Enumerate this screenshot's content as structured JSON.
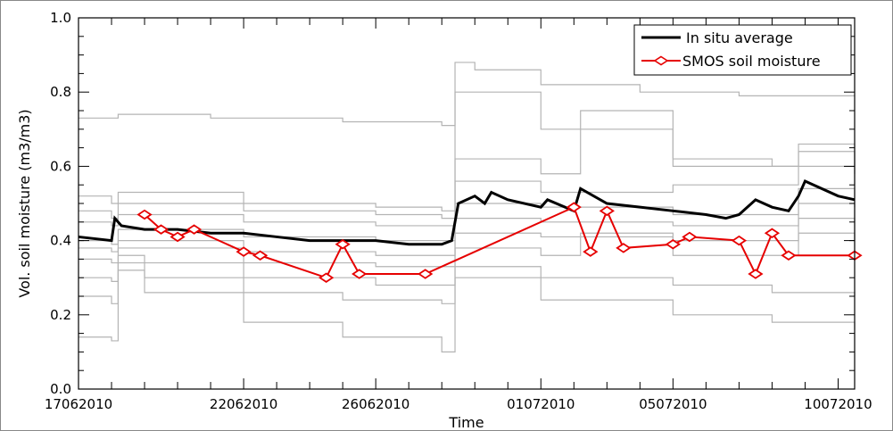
{
  "chart_data": {
    "type": "line",
    "xlabel": "Time",
    "ylabel": "Vol. soil moisture (m3/m3)",
    "x_range": [
      0,
      23.5
    ],
    "ylim": [
      0.0,
      1.0
    ],
    "x_ticks": [
      {
        "x": 0,
        "label": "17062010"
      },
      {
        "x": 5,
        "label": "22062010"
      },
      {
        "x": 9,
        "label": "26062010"
      },
      {
        "x": 14,
        "label": "01072010"
      },
      {
        "x": 18,
        "label": "05072010"
      },
      {
        "x": 23,
        "label": "10072010"
      }
    ],
    "y_ticks": [
      {
        "y": 0.0,
        "label": "0.0"
      },
      {
        "y": 0.2,
        "label": "0.2"
      },
      {
        "y": 0.4,
        "label": "0.4"
      },
      {
        "y": 0.6,
        "label": "0.6"
      },
      {
        "y": 0.8,
        "label": "0.8"
      },
      {
        "y": 1.0,
        "label": "1.0"
      }
    ],
    "legend_position": "top-right",
    "colors": {
      "in_situ": "#000000",
      "smos": "#e60000",
      "stations": "#b4b4b4",
      "frame": "#000000"
    },
    "series": [
      {
        "name": "In situ average",
        "x": [
          0,
          1,
          1.1,
          1.3,
          2,
          3,
          4,
          5,
          6,
          7,
          8,
          9,
          10,
          11,
          11.3,
          11.5,
          12,
          12.3,
          12.5,
          13,
          14,
          14.2,
          15,
          15.2,
          16,
          17,
          18,
          19,
          19.6,
          20,
          20.5,
          21,
          21.5,
          21.8,
          22,
          23,
          23.5
        ],
        "y": [
          0.41,
          0.4,
          0.46,
          0.44,
          0.43,
          0.43,
          0.42,
          0.42,
          0.41,
          0.4,
          0.4,
          0.4,
          0.39,
          0.39,
          0.4,
          0.5,
          0.52,
          0.5,
          0.53,
          0.51,
          0.49,
          0.51,
          0.48,
          0.54,
          0.5,
          0.49,
          0.48,
          0.47,
          0.46,
          0.47,
          0.51,
          0.49,
          0.48,
          0.52,
          0.56,
          0.52,
          0.51
        ]
      },
      {
        "name": "SMOS soil moisture",
        "x": [
          2.0,
          2.5,
          3.0,
          3.5,
          5.0,
          5.5,
          7.5,
          8.0,
          8.5,
          10.5,
          15.0,
          15.5,
          16.0,
          16.5,
          18.0,
          18.5,
          20.0,
          20.5,
          21.0,
          21.5,
          23.5
        ],
        "y": [
          0.47,
          0.43,
          0.41,
          0.43,
          0.37,
          0.36,
          0.3,
          0.39,
          0.31,
          0.31,
          0.49,
          0.37,
          0.48,
          0.38,
          0.39,
          0.41,
          0.4,
          0.31,
          0.42,
          0.36,
          0.36
        ]
      }
    ],
    "background_series": [
      {
        "x": [
          0,
          1,
          1.2,
          4,
          8,
          11,
          11.4,
          12,
          14,
          17,
          20,
          23.5
        ],
        "y": [
          0.73,
          0.73,
          0.74,
          0.73,
          0.72,
          0.71,
          0.88,
          0.86,
          0.82,
          0.8,
          0.79,
          0.79
        ]
      },
      {
        "x": [
          0,
          1,
          1.2,
          5,
          9,
          11,
          11.4,
          14,
          18,
          21,
          21.8,
          23.5
        ],
        "y": [
          0.52,
          0.5,
          0.53,
          0.5,
          0.49,
          0.48,
          0.8,
          0.7,
          0.62,
          0.6,
          0.66,
          0.6
        ]
      },
      {
        "x": [
          0,
          1,
          1.2,
          5,
          9,
          11,
          11.4,
          14,
          15.2,
          18,
          21.8,
          23.5
        ],
        "y": [
          0.48,
          0.46,
          0.5,
          0.48,
          0.47,
          0.46,
          0.62,
          0.58,
          0.75,
          0.6,
          0.64,
          0.58
        ]
      },
      {
        "x": [
          0,
          1,
          1.2,
          5,
          9,
          11,
          11.4,
          14,
          18,
          21.8,
          23.5
        ],
        "y": [
          0.45,
          0.44,
          0.47,
          0.45,
          0.44,
          0.44,
          0.56,
          0.53,
          0.55,
          0.6,
          0.55
        ]
      },
      {
        "x": [
          0,
          1,
          1.2,
          5,
          9,
          11,
          11.4,
          14,
          18,
          21.8,
          23.5
        ],
        "y": [
          0.4,
          0.39,
          0.43,
          0.41,
          0.4,
          0.4,
          0.5,
          0.49,
          0.47,
          0.54,
          0.49
        ]
      },
      {
        "x": [
          0,
          1,
          1.2,
          5,
          9,
          11,
          11.4,
          14,
          18,
          21.8,
          23.5
        ],
        "y": [
          0.38,
          0.37,
          0.4,
          0.37,
          0.36,
          0.36,
          0.46,
          0.45,
          0.44,
          0.5,
          0.45
        ]
      },
      {
        "x": [
          0,
          1,
          1.2,
          5,
          9,
          11,
          11.4,
          14,
          18,
          21.8,
          23.5
        ],
        "y": [
          0.35,
          0.34,
          0.38,
          0.34,
          0.33,
          0.33,
          0.42,
          0.41,
          0.4,
          0.46,
          0.4
        ]
      },
      {
        "x": [
          0,
          1,
          1.2,
          5,
          9,
          11,
          11.4,
          14,
          15.2,
          18,
          21.8,
          23.5
        ],
        "y": [
          0.3,
          0.29,
          0.34,
          0.3,
          0.28,
          0.28,
          0.38,
          0.36,
          0.42,
          0.36,
          0.42,
          0.36
        ]
      },
      {
        "x": [
          0,
          1,
          1.2,
          2,
          5,
          8,
          11,
          11.4,
          14,
          18,
          21,
          23.5
        ],
        "y": [
          0.25,
          0.23,
          0.36,
          0.3,
          0.26,
          0.24,
          0.23,
          0.33,
          0.3,
          0.28,
          0.26,
          0.25
        ]
      },
      {
        "x": [
          0,
          1,
          1.2,
          2,
          5,
          8,
          11,
          11.4,
          14,
          18,
          21,
          23.5
        ],
        "y": [
          0.14,
          0.13,
          0.32,
          0.26,
          0.18,
          0.14,
          0.1,
          0.3,
          0.24,
          0.2,
          0.18,
          0.16
        ]
      }
    ]
  }
}
